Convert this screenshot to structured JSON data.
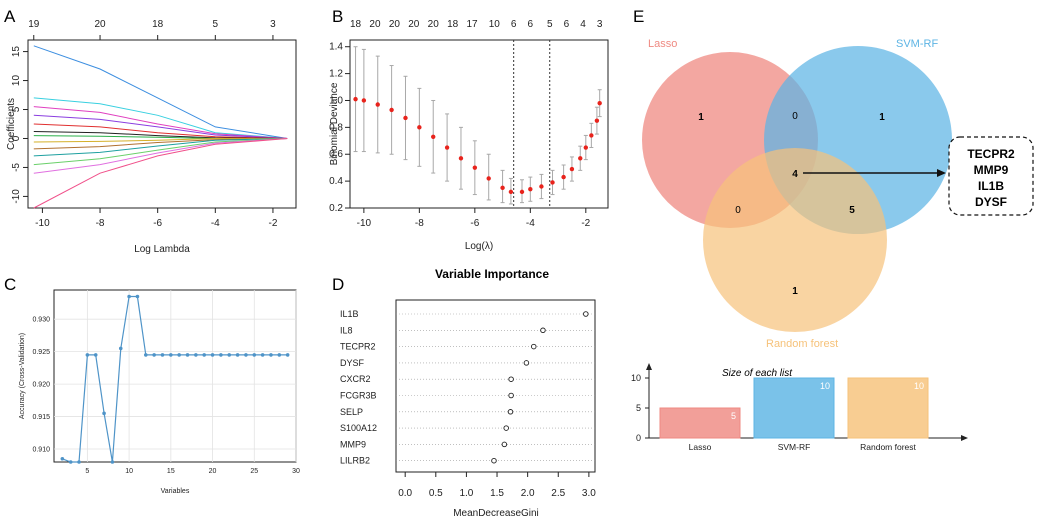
{
  "panels": {
    "A": {
      "letter": "A",
      "xlabel": "Log Lambda",
      "ylabel": "Coefficients",
      "x_ticks": [
        "-10",
        "-8",
        "-6",
        "-4",
        "-2"
      ],
      "y_ticks": [
        "-10",
        "-5",
        "0",
        "5",
        "10",
        "15"
      ],
      "top_ticks": [
        "19",
        "20",
        "18",
        "5",
        "3"
      ]
    },
    "B": {
      "letter": "B",
      "xlabel": "Log(λ)",
      "ylabel": "Binomial Deviance",
      "x_ticks": [
        "-10",
        "-8",
        "-6",
        "-4",
        "-2"
      ],
      "y_ticks": [
        "0.2",
        "0.4",
        "0.6",
        "0.8",
        "1.0",
        "1.2",
        "1.4"
      ],
      "top_ticks": [
        "18",
        "20",
        "20",
        "20",
        "20",
        "18",
        "17",
        "10",
        "6",
        "6",
        "5",
        "6",
        "4",
        "3"
      ]
    },
    "C": {
      "letter": "C",
      "xlabel": "Variables",
      "ylabel": "Accuracy (Cross-Validation)",
      "x_ticks": [
        "5",
        "10",
        "15",
        "20",
        "25",
        "30"
      ],
      "y_ticks": [
        "0.910",
        "0.915",
        "0.920",
        "0.925",
        "0.930"
      ]
    },
    "D": {
      "letter": "D",
      "title": "Variable Importance",
      "xlabel": "MeanDecreaseGini",
      "x_ticks": [
        "0.0",
        "0.5",
        "1.0",
        "1.5",
        "2.0",
        "2.5",
        "3.0"
      ]
    },
    "E": {
      "letter": "E",
      "sets": [
        "Lasso",
        "SVM-RF",
        "Random forest"
      ],
      "region_counts": {
        "lasso_only": "1",
        "svm_only": "1",
        "rf_only": "1",
        "lasso_svm": "0",
        "lasso_rf": "0",
        "svm_rf": "5",
        "all_three": "4"
      },
      "genes": [
        "TECPR2",
        "MMP9",
        "IL1B",
        "DYSF"
      ],
      "bar_title": "Size of each list",
      "bar_y_ticks": [
        "0",
        "5",
        "10"
      ]
    }
  },
  "colors": {
    "lasso": "#ef8a82",
    "svm": "#5db4e4",
    "rf": "#f6c27a",
    "cv_red": "#e8231c",
    "rfe_line": "#4f94c8"
  },
  "chart_data": [
    {
      "panel": "A",
      "type": "line",
      "title": "",
      "xlabel": "Log Lambda",
      "ylabel": "Coefficients",
      "xlim": [
        -10.5,
        -1.2
      ],
      "ylim": [
        -12,
        17
      ],
      "series": [
        {
          "name": "path1",
          "x": [
            -10.3,
            -8,
            -6,
            -4,
            -1.5
          ],
          "y": [
            16,
            12,
            7,
            2,
            0
          ]
        },
        {
          "name": "path2",
          "x": [
            -10.3,
            -8,
            -6,
            -4,
            -1.5
          ],
          "y": [
            7,
            6,
            4,
            1,
            0
          ]
        },
        {
          "name": "path3",
          "x": [
            -10.3,
            -8,
            -6,
            -4,
            -1.5
          ],
          "y": [
            5.5,
            4.5,
            2.5,
            0.8,
            0
          ]
        },
        {
          "name": "path4",
          "x": [
            -10.3,
            -8,
            -6,
            -4,
            -1.5
          ],
          "y": [
            4,
            3.3,
            2,
            0.6,
            0
          ]
        },
        {
          "name": "path5",
          "x": [
            -10.3,
            -8,
            -6,
            -4,
            -1.5
          ],
          "y": [
            2.5,
            2,
            1,
            0.3,
            0
          ]
        },
        {
          "name": "path6",
          "x": [
            -10.3,
            -8,
            -6,
            -4,
            -1.5
          ],
          "y": [
            1.2,
            1,
            0.5,
            0.1,
            0
          ]
        },
        {
          "name": "path7",
          "x": [
            -10.3,
            -8,
            -6,
            -4,
            -1.5
          ],
          "y": [
            0.5,
            0.4,
            0.2,
            0,
            0
          ]
        },
        {
          "name": "path8",
          "x": [
            -10.3,
            -8,
            -6,
            -4,
            -1.5
          ],
          "y": [
            -0.6,
            -0.5,
            -0.3,
            0,
            0
          ]
        },
        {
          "name": "path9",
          "x": [
            -10.3,
            -8,
            -6,
            -4,
            -1.5
          ],
          "y": [
            -1.8,
            -1.4,
            -0.7,
            -0.2,
            0
          ]
        },
        {
          "name": "path10",
          "x": [
            -10.3,
            -8,
            -6,
            -4,
            -1.5
          ],
          "y": [
            -3,
            -2.4,
            -1.3,
            -0.3,
            0
          ]
        },
        {
          "name": "path11",
          "x": [
            -10.3,
            -8,
            -6,
            -4,
            -1.5
          ],
          "y": [
            -4.5,
            -3.5,
            -2,
            -0.6,
            0
          ]
        },
        {
          "name": "path12",
          "x": [
            -10.3,
            -8,
            -6,
            -4,
            -1.5
          ],
          "y": [
            -6,
            -4.5,
            -2.5,
            -0.8,
            0
          ]
        },
        {
          "name": "path13",
          "x": [
            -10.3,
            -8,
            -6,
            -4,
            -1.5
          ],
          "y": [
            -12,
            -6,
            -3,
            -1,
            0
          ]
        }
      ]
    },
    {
      "panel": "B",
      "type": "line",
      "title": "",
      "xlabel": "Log(λ)",
      "ylabel": "Binomial Deviance",
      "xlim": [
        -10.5,
        -1.2
      ],
      "ylim": [
        0.2,
        1.45
      ],
      "x": [
        -10.3,
        -10,
        -9.5,
        -9,
        -8.5,
        -8,
        -7.5,
        -7,
        -6.5,
        -6,
        -5.5,
        -5,
        -4.7,
        -4.3,
        -4,
        -3.6,
        -3.2,
        -2.8,
        -2.5,
        -2.2,
        -2,
        -1.8,
        -1.6,
        -1.5
      ],
      "y": [
        1.01,
        1.0,
        0.97,
        0.93,
        0.87,
        0.8,
        0.73,
        0.65,
        0.57,
        0.5,
        0.42,
        0.35,
        0.32,
        0.32,
        0.34,
        0.36,
        0.39,
        0.43,
        0.49,
        0.57,
        0.65,
        0.74,
        0.85,
        0.98
      ],
      "upper": [
        1.4,
        1.38,
        1.33,
        1.26,
        1.18,
        1.09,
        1.0,
        0.9,
        0.8,
        0.7,
        0.6,
        0.48,
        0.42,
        0.41,
        0.43,
        0.45,
        0.48,
        0.52,
        0.58,
        0.66,
        0.74,
        0.83,
        0.95,
        1.08
      ],
      "lower": [
        0.62,
        0.62,
        0.61,
        0.6,
        0.56,
        0.51,
        0.46,
        0.4,
        0.34,
        0.3,
        0.26,
        0.24,
        0.23,
        0.24,
        0.25,
        0.27,
        0.3,
        0.34,
        0.4,
        0.48,
        0.56,
        0.65,
        0.75,
        0.88
      ],
      "vlines": [
        -4.6,
        -3.3
      ]
    },
    {
      "panel": "C",
      "type": "line",
      "title": "",
      "xlabel": "Variables",
      "ylabel": "Accuracy (Cross-Validation)",
      "xlim": [
        1,
        30
      ],
      "ylim": [
        0.908,
        0.9345
      ],
      "x": [
        2,
        3,
        4,
        5,
        6,
        7,
        8,
        9,
        10,
        11,
        12,
        13,
        14,
        15,
        16,
        17,
        18,
        19,
        20,
        21,
        22,
        23,
        24,
        25,
        26,
        27,
        28,
        29
      ],
      "y": [
        0.9085,
        0.908,
        0.908,
        0.9245,
        0.9245,
        0.9155,
        0.908,
        0.9255,
        0.9335,
        0.9335,
        0.9245,
        0.9245,
        0.9245,
        0.9245,
        0.9245,
        0.9245,
        0.9245,
        0.9245,
        0.9245,
        0.9245,
        0.9245,
        0.9245,
        0.9245,
        0.9245,
        0.9245,
        0.9245,
        0.9245,
        0.9245
      ]
    },
    {
      "panel": "D",
      "type": "scatter",
      "title": "Variable Importance",
      "xlabel": "MeanDecreaseGini",
      "ylabel": "",
      "xlim": [
        -0.15,
        3.1
      ],
      "categories": [
        "IL1B",
        "IL8",
        "TECPR2",
        "DYSF",
        "CXCR2",
        "FCGR3B",
        "SELP",
        "S100A12",
        "MMP9",
        "LILRB2"
      ],
      "values": [
        2.95,
        2.25,
        2.1,
        1.98,
        1.73,
        1.73,
        1.72,
        1.65,
        1.62,
        1.45
      ]
    },
    {
      "panel": "E-bar",
      "type": "bar",
      "title": "Size of each list",
      "xlabel": "",
      "ylabel": "",
      "ylim": [
        0,
        12
      ],
      "categories": [
        "Lasso",
        "SVM-RF",
        "Random forest"
      ],
      "values": [
        5,
        10,
        10
      ],
      "value_labels": [
        "5",
        "10",
        "10"
      ]
    }
  ]
}
